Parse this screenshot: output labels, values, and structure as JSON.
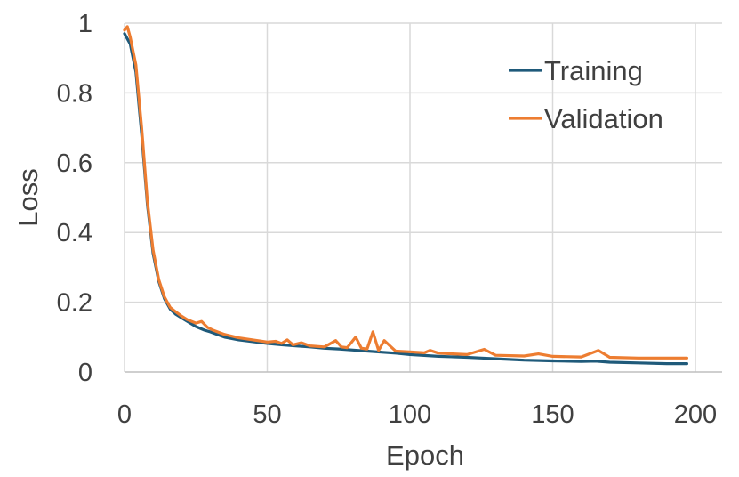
{
  "chart_data": {
    "type": "line",
    "title": "",
    "xlabel": "Epoch",
    "ylabel": "Loss",
    "xlim": [
      0,
      200
    ],
    "ylim": [
      0,
      1
    ],
    "x_ticks": [
      "0",
      "50",
      "100",
      "150",
      "200"
    ],
    "y_ticks": [
      "0",
      "0.2",
      "0.4",
      "0.6",
      "0.8",
      "1"
    ],
    "grid": true,
    "legend_position": "top-right",
    "series": [
      {
        "name": "Training",
        "color": "#1f5a7a",
        "x": [
          0,
          2,
          4,
          6,
          8,
          10,
          12,
          14,
          16,
          18,
          20,
          22,
          25,
          28,
          30,
          35,
          40,
          45,
          50,
          55,
          60,
          65,
          70,
          75,
          80,
          85,
          90,
          95,
          100,
          110,
          120,
          125,
          130,
          140,
          150,
          160,
          165,
          170,
          180,
          190,
          197
        ],
        "y": [
          0.97,
          0.94,
          0.86,
          0.68,
          0.48,
          0.34,
          0.26,
          0.21,
          0.18,
          0.165,
          0.155,
          0.145,
          0.13,
          0.12,
          0.115,
          0.1,
          0.092,
          0.087,
          0.082,
          0.078,
          0.075,
          0.072,
          0.068,
          0.066,
          0.063,
          0.06,
          0.057,
          0.054,
          0.05,
          0.045,
          0.042,
          0.04,
          0.038,
          0.034,
          0.032,
          0.03,
          0.031,
          0.028,
          0.026,
          0.024,
          0.024
        ]
      },
      {
        "name": "Validation",
        "color": "#ed7d31",
        "x": [
          0,
          1,
          2,
          4,
          6,
          8,
          10,
          12,
          14,
          16,
          18,
          20,
          22,
          25,
          27,
          29,
          31,
          35,
          40,
          45,
          50,
          53,
          55,
          57,
          59,
          62,
          65,
          70,
          74,
          76,
          78,
          81,
          83,
          85,
          87,
          89,
          91,
          95,
          100,
          105,
          107,
          110,
          115,
          120,
          126,
          130,
          140,
          145,
          150,
          160,
          166,
          170,
          180,
          190,
          197
        ],
        "y": [
          0.98,
          0.99,
          0.96,
          0.88,
          0.7,
          0.49,
          0.35,
          0.265,
          0.215,
          0.185,
          0.172,
          0.16,
          0.15,
          0.14,
          0.145,
          0.128,
          0.12,
          0.108,
          0.098,
          0.092,
          0.086,
          0.088,
          0.082,
          0.092,
          0.078,
          0.084,
          0.075,
          0.072,
          0.09,
          0.072,
          0.07,
          0.1,
          0.068,
          0.066,
          0.115,
          0.062,
          0.09,
          0.06,
          0.058,
          0.055,
          0.062,
          0.054,
          0.052,
          0.05,
          0.065,
          0.048,
          0.046,
          0.052,
          0.045,
          0.043,
          0.062,
          0.042,
          0.04,
          0.04,
          0.04
        ]
      }
    ]
  }
}
